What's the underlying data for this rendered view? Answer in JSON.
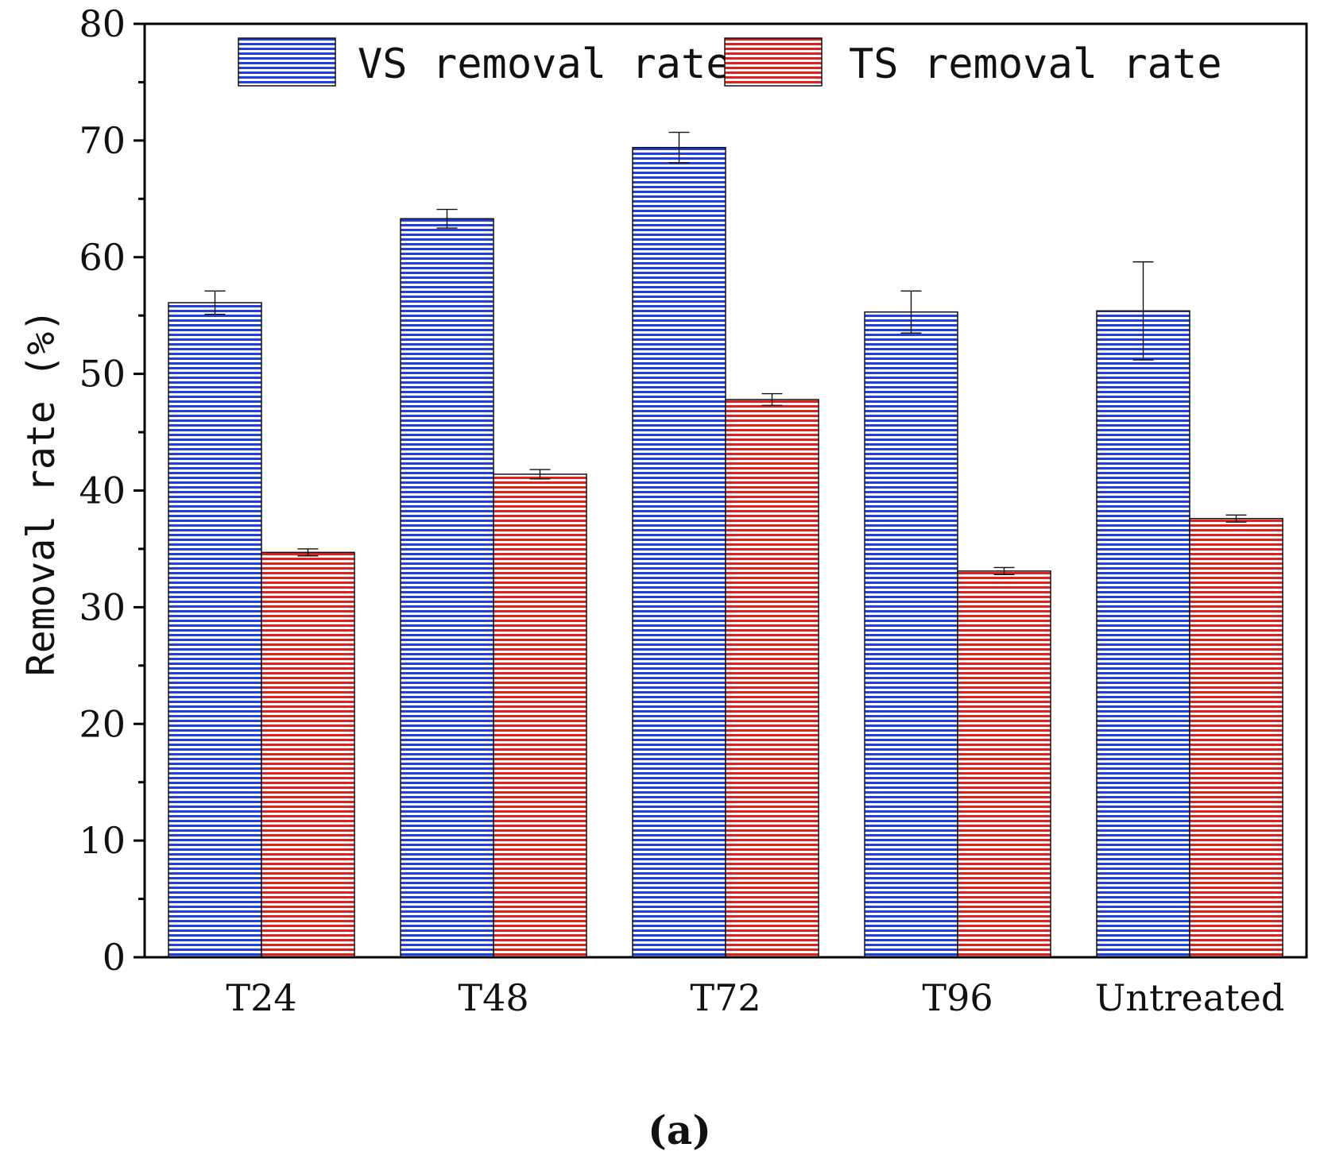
{
  "chart_data": {
    "type": "bar",
    "title": "",
    "xlabel": "",
    "ylabel": "Removal rate (%)",
    "ylim": [
      0,
      80
    ],
    "yticks": [
      0,
      10,
      20,
      30,
      40,
      50,
      60,
      70,
      80
    ],
    "categories": [
      "T24",
      "T48",
      "T72",
      "T96",
      "Untreated"
    ],
    "series": [
      {
        "name": "VS removal rate",
        "color": "#1f3fe0",
        "values": [
          56.1,
          63.3,
          69.4,
          55.3,
          55.4
        ],
        "errors": [
          1.0,
          0.8,
          1.3,
          1.8,
          4.2
        ]
      },
      {
        "name": "TS removal rate",
        "color": "#e01f1f",
        "values": [
          34.7,
          41.4,
          47.8,
          33.1,
          37.6
        ],
        "errors": [
          0.3,
          0.4,
          0.5,
          0.3,
          0.3
        ]
      }
    ],
    "legend": "top",
    "grid": false
  },
  "caption": "(a)"
}
